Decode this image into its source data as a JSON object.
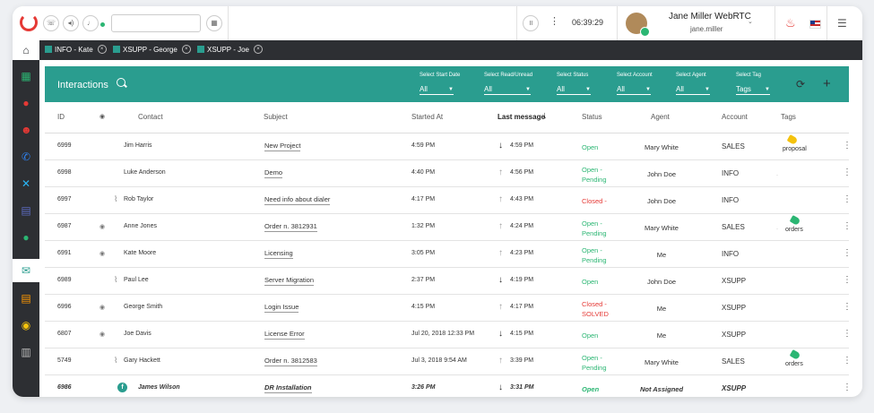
{
  "topbar": {
    "timer": "06:39:29",
    "user_name": "Jane Miller WebRTC",
    "user_sub": "jane.miller"
  },
  "tabs": [
    {
      "label": "INFO - Kate"
    },
    {
      "label": "XSUPP - George"
    },
    {
      "label": "XSUPP - Joe"
    }
  ],
  "interactions": {
    "title": "Interactions",
    "filters": [
      {
        "label": "Select Start Date",
        "value": "All"
      },
      {
        "label": "Select Read/Unread",
        "value": "All"
      },
      {
        "label": "Select Status",
        "value": "All"
      },
      {
        "label": "Select Account",
        "value": "All"
      },
      {
        "label": "Select Agent",
        "value": "All"
      },
      {
        "label": "Select Tag",
        "value": "Tags"
      }
    ]
  },
  "columns": {
    "id": "ID",
    "contact": "Contact",
    "subject": "Subject",
    "started_at": "Started At",
    "last_message": "Last message",
    "status": "Status",
    "agent": "Agent",
    "account": "Account",
    "tags": "Tags"
  },
  "rows": [
    {
      "id": "6999",
      "contact": "Jim Harris",
      "subject": "New Project",
      "started": "4:59 PM",
      "last": "4:59 PM",
      "dir": "down",
      "status1": "Open",
      "status2": "",
      "status_color": "green",
      "agent": "Mary White",
      "account": "SALES",
      "tag": "proposal",
      "tag_color": "#f4c20d"
    },
    {
      "id": "6998",
      "contact": "Luke Anderson",
      "subject": "Demo",
      "started": "4:40 PM",
      "last": "4:56 PM",
      "dir": "up",
      "status1": "Open -",
      "status2": "Pending",
      "status_color": "green",
      "agent": "John Doe",
      "account": "INFO",
      "tag": "",
      "tag_color": ""
    },
    {
      "id": "6997",
      "contact": "Rob Taylor",
      "subject": "Need info about dialer",
      "started": "4:17 PM",
      "last": "4:43 PM",
      "dir": "up",
      "status1": "Closed -",
      "status2": "",
      "status_color": "red",
      "agent": "John Doe",
      "account": "INFO",
      "tag": "",
      "tag_color": ""
    },
    {
      "id": "6987",
      "contact": "Anne Jones",
      "subject": "Order n. 3812931",
      "started": "1:32 PM",
      "last": "4:24 PM",
      "dir": "up",
      "status1": "Open -",
      "status2": "Pending",
      "status_color": "green",
      "agent": "Mary White",
      "account": "SALES",
      "tag": "orders",
      "tag_color": "#2bb673"
    },
    {
      "id": "6991",
      "contact": "Kate Moore",
      "subject": "Licensing",
      "started": "3:05 PM",
      "last": "4:23 PM",
      "dir": "up",
      "status1": "Open -",
      "status2": "Pending",
      "status_color": "green",
      "agent": "Me",
      "account": "INFO",
      "tag": "",
      "tag_color": ""
    },
    {
      "id": "6989",
      "contact": "Paul Lee",
      "subject": "Server Migration",
      "started": "2:37 PM",
      "last": "4:19 PM",
      "dir": "down",
      "status1": "Open",
      "status2": "",
      "status_color": "green",
      "agent": "John Doe",
      "account": "XSUPP",
      "tag": "",
      "tag_color": ""
    },
    {
      "id": "6996",
      "contact": "George Smith",
      "subject": "Login Issue",
      "started": "4:15 PM",
      "last": "4:17 PM",
      "dir": "up",
      "status1": "Closed -",
      "status2": "SOLVED",
      "status_color": "red",
      "agent": "Me",
      "account": "XSUPP",
      "tag": "",
      "tag_color": ""
    },
    {
      "id": "6807",
      "contact": "Joe Davis",
      "subject": "License Error",
      "started": "Jul 20, 2018 12:33 PM",
      "last": "4:15 PM",
      "dir": "down",
      "status1": "Open",
      "status2": "",
      "status_color": "green",
      "agent": "Me",
      "account": "XSUPP",
      "tag": "",
      "tag_color": ""
    },
    {
      "id": "5749",
      "contact": "Gary Hackett",
      "subject": "Order n. 3812583",
      "started": "Jul 3, 2018 9:54 AM",
      "last": "3:39 PM",
      "dir": "up",
      "status1": "Open -",
      "status2": "Pending",
      "status_color": "green",
      "agent": "Mary White",
      "account": "SALES",
      "tag": "orders",
      "tag_color": "#2bb673"
    },
    {
      "id": "6986",
      "contact": "James Wilson",
      "subject": "DR Installation",
      "started": "3:26 PM",
      "last": "3:31 PM",
      "dir": "down",
      "status1": "Open",
      "status2": "",
      "status_color": "green",
      "agent": "Not Assigned",
      "account": "XSUPP",
      "tag": "",
      "tag_color": ""
    }
  ]
}
